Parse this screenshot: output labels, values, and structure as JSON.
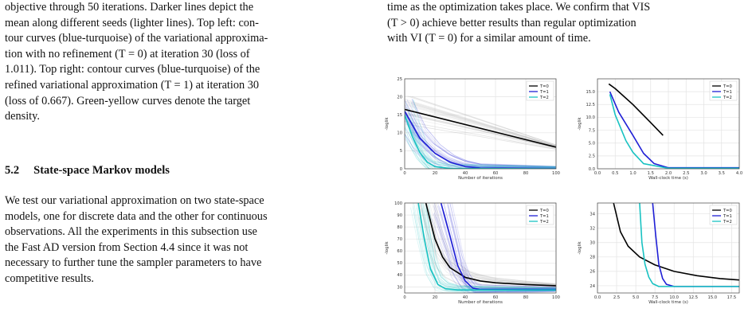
{
  "left_column": {
    "caption_lines": [
      "objective through 50 iterations. Darker lines depict the",
      "mean along different seeds (lighter lines). Top left: con-",
      "tour curves (blue-turquoise) of the variational approxima-",
      "tion with no refinement (T = 0) at iteration 30 (loss of",
      "1.011). Top right: contour curves (blue-turquoise) of the",
      "refined variational approximation (T = 1) at iteration 30",
      "(loss of 0.667). Green-yellow curves denote the target",
      "density."
    ],
    "section_number": "5.2",
    "section_title": "State-space Markov models",
    "body_lines": [
      "We test our variational approximation on two state-space",
      "models, one for discrete data and the other for continuous",
      "observations. All the experiments in this subsection use",
      "the Fast AD version from Section 4.4 since it was not",
      "necessary to further tune the sampler parameters to have",
      "competitive results."
    ]
  },
  "right_column": {
    "lines": [
      "time as the optimization takes place. We confirm that VIS",
      "(T > 0) achieve better results than regular optimization",
      "with VI (T = 0) for a similar amount of time."
    ]
  },
  "chart_data": [
    {
      "type": "line",
      "position": "top-left",
      "xlabel": "Number of iterations",
      "ylabel": "-loglik",
      "xlim": [
        0,
        100
      ],
      "ylim": [
        0,
        25
      ],
      "xticks": [
        0,
        20,
        40,
        60,
        80,
        100
      ],
      "yticks": [
        0,
        5,
        10,
        15,
        20,
        25
      ],
      "grid": true,
      "legend": "top-right",
      "series": [
        {
          "name": "T=0",
          "color": "#000000",
          "x": [
            0,
            100
          ],
          "y": [
            16.5,
            6
          ]
        },
        {
          "name": "T=1",
          "color": "#1f1fd6",
          "x": [
            0,
            10,
            20,
            30,
            40,
            50,
            100
          ],
          "y": [
            16,
            8.5,
            4.3,
            1.8,
            0.6,
            0.2,
            0.05
          ]
        },
        {
          "name": "T=2",
          "color": "#19c2c2",
          "x": [
            0,
            5,
            10,
            15,
            20,
            30,
            100
          ],
          "y": [
            15,
            9,
            4.5,
            1.8,
            0.6,
            0.1,
            0.0
          ]
        }
      ]
    },
    {
      "type": "line",
      "position": "top-right",
      "xlabel": "Wall-clock time (s)",
      "ylabel": "-loglik",
      "xlim": [
        0,
        4.0
      ],
      "ylim": [
        0,
        17.5
      ],
      "xticks": [
        "0.0",
        "0.5",
        "1.0",
        "1.5",
        "2.0",
        "2.5",
        "3.0",
        "3.5",
        "4.0"
      ],
      "yticks": [
        "0.0",
        "2.5",
        "5.0",
        "7.5",
        "10.0",
        "12.5",
        "15.0"
      ],
      "grid": true,
      "legend": "top-right",
      "series": [
        {
          "name": "T=0",
          "color": "#000000",
          "x": [
            0.32,
            0.5,
            1.0,
            1.5,
            1.85
          ],
          "y": [
            16.5,
            15.6,
            12.5,
            9.0,
            6.5
          ]
        },
        {
          "name": "T=1",
          "color": "#1f1fd6",
          "x": [
            0.35,
            0.6,
            1.0,
            1.3,
            1.6,
            2.0,
            4.0
          ],
          "y": [
            15.0,
            11.0,
            6.5,
            3.0,
            1.0,
            0.2,
            0.2
          ]
        },
        {
          "name": "T=2",
          "color": "#19c2c2",
          "x": [
            0.35,
            0.5,
            0.8,
            1.0,
            1.3,
            2.0,
            4.0
          ],
          "y": [
            14.5,
            10.5,
            5.5,
            3.2,
            1.0,
            0.1,
            0.1
          ]
        }
      ]
    },
    {
      "type": "line",
      "position": "bottom-left",
      "xlabel": "Number of iterations",
      "ylabel": "-loglik",
      "xlim": [
        0,
        100
      ],
      "ylim": [
        25,
        100
      ],
      "xticks": [
        0,
        20,
        40,
        60,
        80,
        100
      ],
      "yticks": [
        30,
        40,
        50,
        60,
        70,
        80,
        90,
        100
      ],
      "grid": true,
      "legend": "top-right",
      "series": [
        {
          "name": "T=0",
          "color": "#000000",
          "x": [
            14,
            20,
            25,
            30,
            40,
            50,
            60,
            80,
            100
          ],
          "y": [
            100,
            70,
            55,
            46,
            38,
            35,
            33.5,
            32,
            31
          ]
        },
        {
          "name": "T=1",
          "color": "#1f1fd6",
          "x": [
            24,
            30,
            35,
            40,
            45,
            50,
            100
          ],
          "y": [
            100,
            72,
            48,
            35,
            29,
            28,
            28
          ]
        },
        {
          "name": "T=2",
          "color": "#19c2c2",
          "x": [
            9,
            13,
            17,
            22,
            27,
            35,
            100
          ],
          "y": [
            100,
            70,
            45,
            32,
            28.5,
            27.5,
            27.5
          ]
        }
      ]
    },
    {
      "type": "line",
      "position": "bottom-right",
      "xlabel": "Wall-clock time (s)",
      "ylabel": "-loglik",
      "xlim": [
        0,
        18.5
      ],
      "ylim": [
        23,
        35.5
      ],
      "xticks": [
        "0.0",
        "2.5",
        "5.0",
        "7.5",
        "10.0",
        "12.5",
        "15.0",
        "17.5"
      ],
      "yticks": [
        24,
        26,
        28,
        30,
        32,
        34
      ],
      "grid": true,
      "legend": "top-right",
      "series": [
        {
          "name": "T=0",
          "color": "#000000",
          "x": [
            2.1,
            3.0,
            4.0,
            5.5,
            7.5,
            10.0,
            13.0,
            16.0,
            18.5
          ],
          "y": [
            35.5,
            31.5,
            29.5,
            28.0,
            26.9,
            26.0,
            25.4,
            25.0,
            24.8
          ]
        },
        {
          "name": "T=1",
          "color": "#1f1fd6",
          "x": [
            7.2,
            7.6,
            8.0,
            8.5,
            9.0,
            10.0,
            18.5
          ],
          "y": [
            35.5,
            31.0,
            27.0,
            25.0,
            24.2,
            23.9,
            23.9
          ]
        },
        {
          "name": "T=2",
          "color": "#19c2c2",
          "x": [
            5.5,
            5.8,
            6.2,
            6.7,
            7.2,
            8.0,
            18.5
          ],
          "y": [
            35.5,
            30.0,
            27.0,
            25.2,
            24.3,
            23.9,
            23.9
          ]
        }
      ]
    }
  ]
}
